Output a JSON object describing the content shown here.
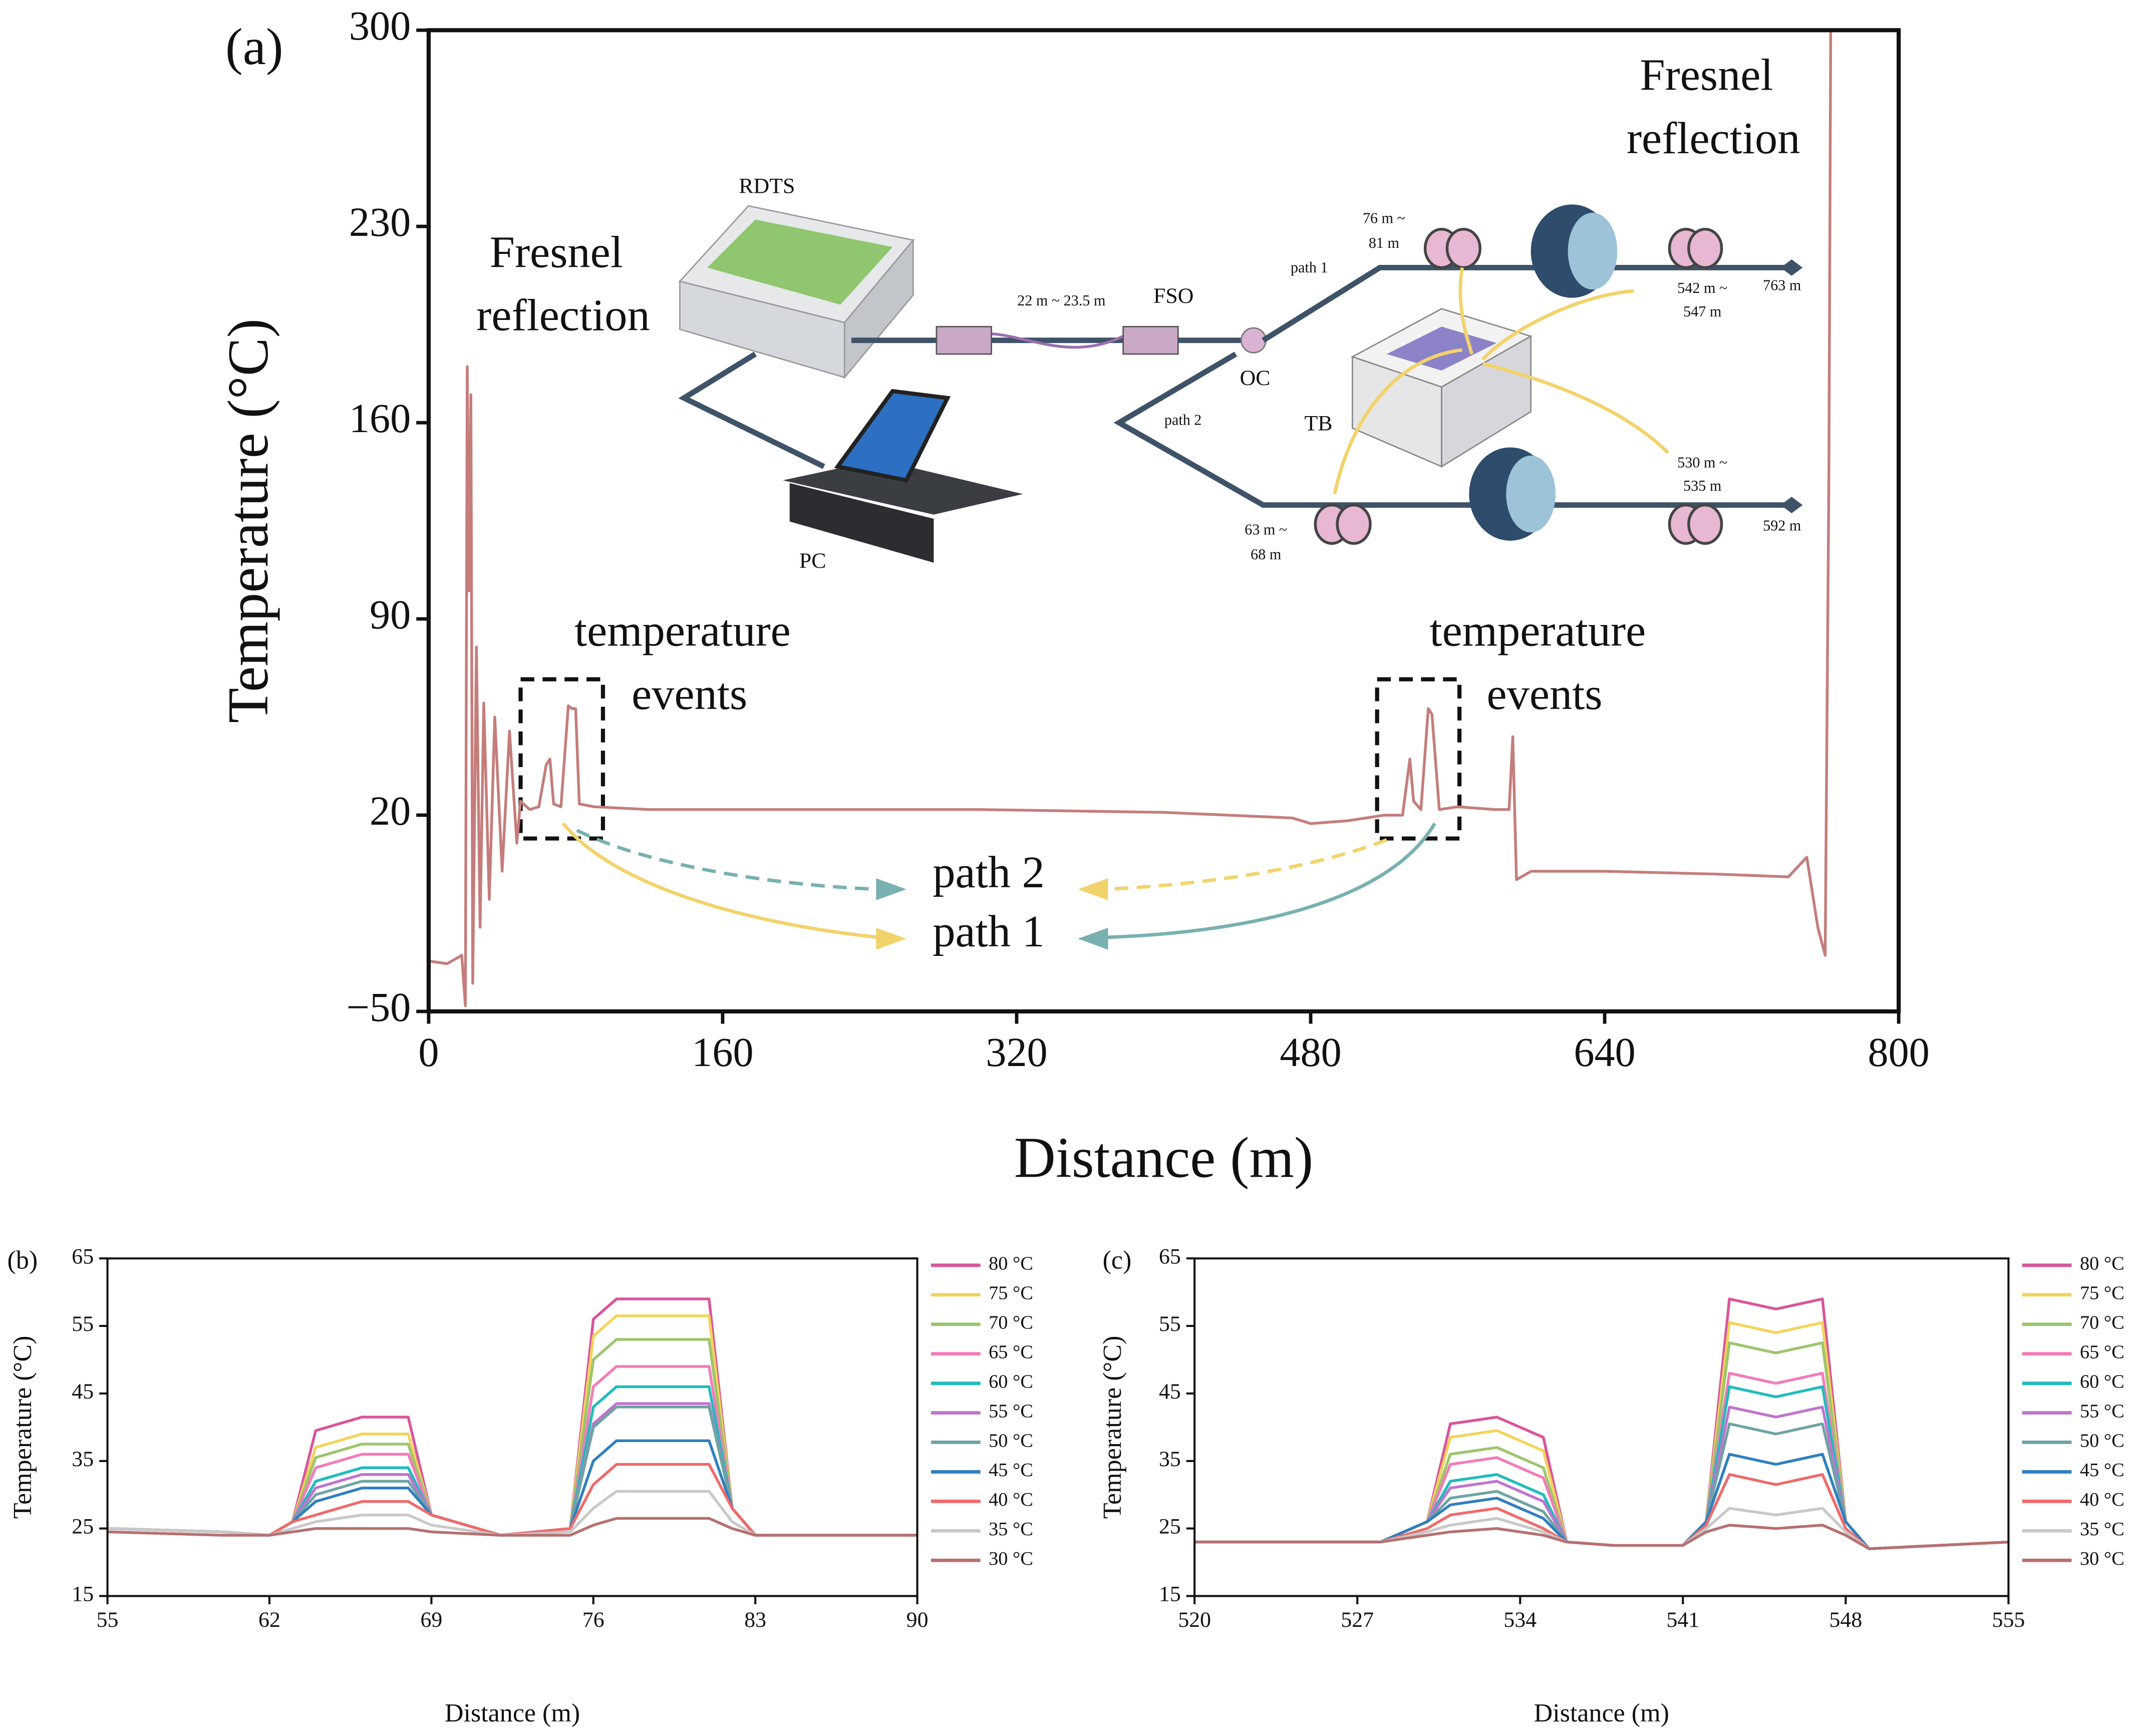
{
  "chart_data": [
    {
      "type": "line",
      "y_label": "Temperature (°C)",
      "x_label": "Distance (m)",
      "xlim": [
        0,
        800
      ],
      "xticks": [
        0,
        160,
        320,
        480,
        640,
        800
      ],
      "ylim": [
        -50,
        300
      ],
      "yticks": [
        {
          "value": -50,
          "label": "−50"
        },
        20,
        90,
        160,
        230,
        300
      ],
      "x": [
        0,
        10,
        18,
        20,
        21,
        22,
        23,
        24,
        26,
        28,
        30,
        33,
        36,
        40,
        44,
        48,
        50,
        55,
        60,
        64,
        66,
        68,
        72,
        76,
        78,
        80,
        82,
        90,
        120,
        200,
        300,
        400,
        470,
        480,
        500,
        520,
        530,
        534,
        536,
        540,
        544,
        546,
        550,
        560,
        580,
        588,
        590,
        592,
        600,
        640,
        700,
        740,
        750,
        756,
        760,
        762,
        763
      ],
      "series": [
        {
          "color": "#c47d7b",
          "values": [
            -32,
            -33,
            -30,
            -48,
            180,
            100,
            170,
            -40,
            80,
            -20,
            60,
            -10,
            55,
            0,
            50,
            10,
            25,
            22,
            23,
            38,
            40,
            24,
            23,
            59,
            58,
            58,
            24,
            23,
            22,
            22,
            22,
            21,
            19,
            17,
            18,
            20,
            20,
            40,
            25,
            22,
            58,
            56,
            22,
            23,
            22,
            22,
            48,
            -3,
            0,
            0,
            -1,
            -2,
            5,
            -20,
            -30,
            140,
            300
          ]
        }
      ],
      "annotations": [
        "(a)",
        "Fresnel",
        "reflection",
        "Fresnel",
        "reflection",
        "temperature",
        "events",
        "temperature",
        "events",
        "path 2",
        "path 1",
        "RDTS",
        "PC",
        "22 m ~ 23.5 m",
        "FSO",
        "OC",
        "path 1",
        "path 2",
        "TB",
        "76 m ~",
        "81 m",
        "542 m ~",
        "547 m",
        "763 m",
        "530 m ~",
        "535 m",
        "592 m",
        "63 m ~",
        "68 m"
      ]
    },
    {
      "type": "line",
      "panel": "(b)",
      "y_label": "Temperature (°C)",
      "x_label": "Distance (m)",
      "legend": "right",
      "xlim": [
        55,
        90
      ],
      "xticks": [
        55,
        62,
        69,
        76,
        83,
        90
      ],
      "ylim": [
        15,
        65
      ],
      "yticks": [
        15,
        25,
        35,
        45,
        55,
        65
      ],
      "x": [
        55,
        60,
        62,
        63,
        64,
        66,
        68,
        69,
        72,
        75,
        76,
        77,
        80,
        81,
        82,
        83,
        90
      ],
      "series": [
        {
          "name": "80 °C",
          "color": "#d9559a",
          "values": [
            25,
            24.5,
            24,
            26,
            39.5,
            41.5,
            41.5,
            27,
            24,
            25,
            56,
            59,
            59,
            59,
            28,
            24,
            24
          ]
        },
        {
          "name": "75 °C",
          "color": "#f3d35a",
          "values": [
            25,
            24.5,
            24,
            26,
            37,
            39,
            39,
            27,
            24,
            25,
            53.5,
            56.5,
            56.5,
            56.5,
            28,
            24,
            24
          ]
        },
        {
          "name": "70 °C",
          "color": "#9cc56d",
          "values": [
            25,
            24.5,
            24,
            26,
            35.5,
            37.5,
            37.5,
            27,
            24,
            25,
            50,
            53,
            53,
            53,
            28,
            24,
            24
          ]
        },
        {
          "name": "65 °C",
          "color": "#f47cb8",
          "values": [
            25,
            24.5,
            24,
            26,
            34,
            36,
            36,
            27,
            24,
            25,
            46,
            49,
            49,
            49,
            28,
            24,
            24
          ]
        },
        {
          "name": "60 °C",
          "color": "#1fbcbc",
          "values": [
            25,
            24.5,
            24,
            26,
            32,
            34,
            34,
            27,
            24,
            25,
            43,
            46,
            46,
            46,
            28,
            24,
            24
          ]
        },
        {
          "name": "55 °C",
          "color": "#c074cf",
          "values": [
            25,
            24.5,
            24,
            26,
            31,
            33,
            33,
            27,
            24,
            25,
            40.5,
            43.5,
            43.5,
            43.5,
            28,
            24,
            24
          ]
        },
        {
          "name": "50 °C",
          "color": "#6fa3a3",
          "values": [
            25,
            24.5,
            24,
            26,
            30,
            32,
            32,
            27,
            24,
            25,
            40,
            43,
            43,
            43,
            28,
            24,
            24
          ]
        },
        {
          "name": "45 °C",
          "color": "#2f7fbf",
          "values": [
            25,
            24.5,
            24,
            26,
            29,
            31,
            31,
            27,
            24,
            25,
            35,
            38,
            38,
            38,
            28,
            24,
            24
          ]
        },
        {
          "name": "40 °C",
          "color": "#f06a6a",
          "values": [
            25,
            24.5,
            24,
            26,
            27,
            29,
            29,
            27,
            24,
            25,
            31.5,
            34.5,
            34.5,
            34.5,
            28,
            24,
            24
          ]
        },
        {
          "name": "35 °C",
          "color": "#c8c8c8",
          "values": [
            25,
            24.5,
            24,
            25,
            26,
            27,
            27,
            25.5,
            24,
            24.5,
            28,
            30.5,
            30.5,
            30.5,
            26,
            24,
            24
          ]
        },
        {
          "name": "30 °C",
          "color": "#b77070",
          "values": [
            24.5,
            24,
            24,
            24.5,
            25,
            25,
            25,
            24.5,
            24,
            24,
            25.5,
            26.5,
            26.5,
            26.5,
            25,
            24,
            24
          ]
        }
      ]
    },
    {
      "type": "line",
      "panel": "(c)",
      "y_label": "Temperature (°C)",
      "x_label": "Distance (m)",
      "legend": "right",
      "xlim": [
        520,
        555
      ],
      "xticks": [
        520,
        527,
        534,
        541,
        548,
        555
      ],
      "ylim": [
        15,
        65
      ],
      "yticks": [
        15,
        25,
        35,
        45,
        55,
        65
      ],
      "x": [
        520,
        525,
        528,
        530,
        531,
        533,
        535,
        536,
        538,
        541,
        542,
        543,
        545,
        547,
        548,
        549,
        555
      ],
      "series": [
        {
          "name": "80 °C",
          "color": "#d9559a",
          "values": [
            23,
            23,
            23,
            26,
            40.5,
            41.5,
            38.5,
            23,
            22.5,
            22.5,
            26,
            59,
            57.5,
            59,
            26,
            22,
            23
          ]
        },
        {
          "name": "75 °C",
          "color": "#f3d35a",
          "values": [
            23,
            23,
            23,
            26,
            38.5,
            39.5,
            36.5,
            23,
            22.5,
            22.5,
            26,
            55.5,
            54,
            55.5,
            26,
            22,
            23
          ]
        },
        {
          "name": "70 °C",
          "color": "#9cc56d",
          "values": [
            23,
            23,
            23,
            26,
            36,
            37,
            34,
            23,
            22.5,
            22.5,
            26,
            52.5,
            51,
            52.5,
            26,
            22,
            23
          ]
        },
        {
          "name": "65 °C",
          "color": "#f47cb8",
          "values": [
            23,
            23,
            23,
            26,
            34.5,
            35.5,
            32.5,
            23,
            22.5,
            22.5,
            26,
            48,
            46.5,
            48,
            26,
            22,
            23
          ]
        },
        {
          "name": "60 °C",
          "color": "#1fbcbc",
          "values": [
            23,
            23,
            23,
            26,
            32,
            33,
            30,
            23,
            22.5,
            22.5,
            26,
            46,
            44.5,
            46,
            26,
            22,
            23
          ]
        },
        {
          "name": "55 °C",
          "color": "#c074cf",
          "values": [
            23,
            23,
            23,
            26,
            31,
            32,
            29,
            23,
            22.5,
            22.5,
            26,
            43,
            41.5,
            43,
            26,
            22,
            23
          ]
        },
        {
          "name": "50 °C",
          "color": "#6fa3a3",
          "values": [
            23,
            23,
            23,
            26,
            29.5,
            30.5,
            27.5,
            23,
            22.5,
            22.5,
            26,
            40.5,
            39,
            40.5,
            26,
            22,
            23
          ]
        },
        {
          "name": "45 °C",
          "color": "#2f7fbf",
          "values": [
            23,
            23,
            23,
            26,
            28.5,
            29.5,
            26.5,
            23,
            22.5,
            22.5,
            26,
            36,
            34.5,
            36,
            26,
            22,
            23
          ]
        },
        {
          "name": "40 °C",
          "color": "#f06a6a",
          "values": [
            23,
            23,
            23,
            25,
            27,
            28,
            25,
            23,
            22.5,
            22.5,
            25.5,
            33,
            31.5,
            33,
            25,
            22,
            23
          ]
        },
        {
          "name": "35 °C",
          "color": "#c8c8c8",
          "values": [
            23,
            23,
            23,
            24.5,
            25.5,
            26.5,
            24.5,
            23,
            22.5,
            22.5,
            25,
            28,
            27,
            28,
            24.5,
            22,
            23
          ]
        },
        {
          "name": "30 °C",
          "color": "#b77070",
          "values": [
            23,
            23,
            23,
            24,
            24.5,
            25,
            24,
            23,
            22.5,
            22.5,
            24.5,
            25.5,
            25,
            25.5,
            24,
            22,
            23
          ]
        }
      ]
    }
  ]
}
